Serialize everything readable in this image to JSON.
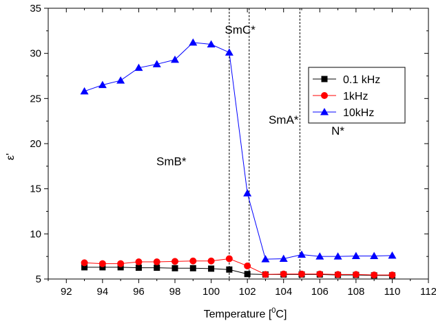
{
  "chart_data": {
    "type": "line",
    "xlabel_main": "Temperature [",
    "xlabel_sup": "0",
    "xlabel_end": "C]",
    "ylabel": "ε'",
    "xlim": [
      91,
      112
    ],
    "ylim": [
      5,
      35
    ],
    "xticks": [
      92,
      94,
      96,
      98,
      100,
      102,
      104,
      106,
      108,
      110,
      112
    ],
    "yticks": [
      5,
      10,
      15,
      20,
      25,
      30,
      35
    ],
    "grid": false,
    "legend_position": "top-right",
    "phase_boundaries": [
      101,
      102.1,
      104.9
    ],
    "phase_labels": [
      {
        "text": "SmB*",
        "x": 97.8,
        "y": 17.6
      },
      {
        "text": "SmC*",
        "x": 101.6,
        "y": 32.2
      },
      {
        "text": "SmA*",
        "x": 104.0,
        "y": 22.2
      },
      {
        "text": "N*",
        "x": 107.0,
        "y": 21.0
      }
    ],
    "series": [
      {
        "name": "0.1 kHz",
        "color": "#000000",
        "marker": "square",
        "x": [
          93,
          94,
          95,
          96,
          97,
          98,
          99,
          100,
          101,
          102,
          103,
          104,
          105,
          106,
          107,
          108,
          109,
          110
        ],
        "y": [
          6.3,
          6.3,
          6.3,
          6.25,
          6.25,
          6.2,
          6.2,
          6.15,
          6.05,
          5.55,
          5.5,
          5.5,
          5.5,
          5.5,
          5.45,
          5.45,
          5.4,
          5.4
        ]
      },
      {
        "name": "1kHz",
        "color": "#ff0000",
        "marker": "circle",
        "x": [
          93,
          94,
          95,
          96,
          97,
          98,
          99,
          100,
          101,
          102,
          103,
          104,
          105,
          106,
          107,
          108,
          109,
          110
        ],
        "y": [
          6.8,
          6.7,
          6.7,
          6.9,
          6.9,
          6.95,
          7.0,
          7.0,
          7.25,
          6.45,
          5.5,
          5.55,
          5.55,
          5.55,
          5.5,
          5.5,
          5.45,
          5.45
        ]
      },
      {
        "name": "10kHz",
        "color": "#0000ff",
        "marker": "triangle",
        "x": [
          93,
          94,
          95,
          96,
          97,
          98,
          99,
          100,
          101,
          102,
          103,
          104,
          105,
          106,
          107,
          108,
          109,
          110
        ],
        "y": [
          25.8,
          26.5,
          27.0,
          28.4,
          28.8,
          29.3,
          31.2,
          31.0,
          30.1,
          14.5,
          7.2,
          7.25,
          7.7,
          7.5,
          7.5,
          7.55,
          7.55,
          7.6
        ]
      }
    ]
  }
}
